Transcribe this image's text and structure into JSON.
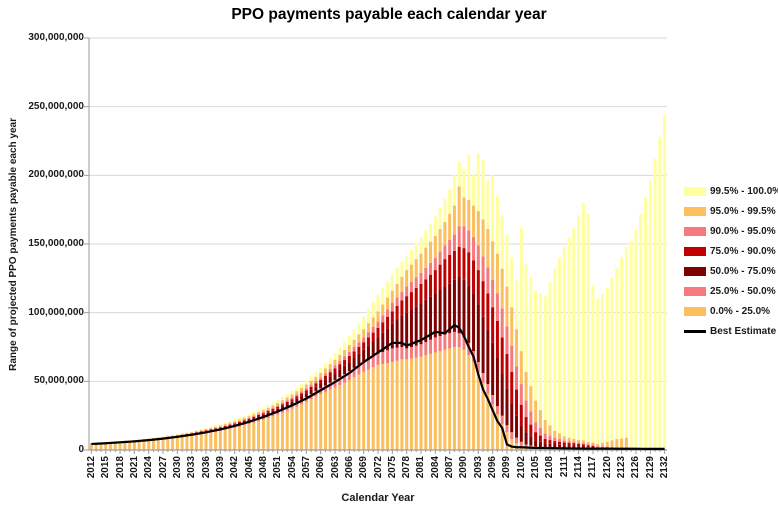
{
  "title": "PPO payments payable each calendar year",
  "x_axis_title": "Calendar Year",
  "y_axis_title": "Range of projected PPO payments payable each year",
  "colors": {
    "band_yellow": "#FFFF9E",
    "band_orange": "#FBBF5E",
    "band_pink": "#F5797D",
    "band_red": "#C00000",
    "band_darkred": "#7F0000",
    "best_estimate_line": "#000000",
    "gridline": "#D9D9D9",
    "axis": "#9C9C9C",
    "text": "#1a1a1a"
  },
  "legend": {
    "position": "right",
    "items": [
      {
        "label": "99.5% - 100.0%",
        "color": "#FFFF9E"
      },
      {
        "label": "95.0% - 99.5%",
        "color": "#FBBF5E"
      },
      {
        "label": "90.0% - 95.0%",
        "color": "#F5797D"
      },
      {
        "label": "75.0% - 90.0%",
        "color": "#C00000"
      },
      {
        "label": "50.0% - 75.0%",
        "color": "#7F0000"
      },
      {
        "label": "25.0% - 50.0%",
        "color": "#F5797D"
      },
      {
        "label": "0.0% - 25.0%",
        "color": "#FBBF5E"
      },
      {
        "label": "Best Estimate",
        "color": "#000000",
        "type": "line"
      }
    ]
  },
  "chart_data": {
    "type": "bar",
    "subtype": "stacked-percentile-fan-with-line",
    "title": "PPO payments payable each calendar year",
    "xlabel": "Calendar Year",
    "ylabel": "Range of projected PPO payments payable each year",
    "grid": "horizontal",
    "legend_position": "right",
    "x_year_range": [
      2012,
      2132
    ],
    "xtick_years": [
      2012,
      2015,
      2018,
      2021,
      2024,
      2027,
      2030,
      2033,
      2036,
      2039,
      2042,
      2045,
      2048,
      2051,
      2054,
      2057,
      2060,
      2063,
      2066,
      2069,
      2072,
      2075,
      2078,
      2081,
      2084,
      2087,
      2090,
      2093,
      2096,
      2099,
      2102,
      2105,
      2108,
      2111,
      2114,
      2117,
      2120,
      2123,
      2126,
      2129,
      2132
    ],
    "ylim_millions": [
      0,
      300
    ],
    "ytick_values_millions": [
      0,
      50,
      100,
      150,
      200,
      250,
      300
    ],
    "ytick_labels": [
      "0",
      "50,000,000",
      "100,000,000",
      "150,000,000",
      "200,000,000",
      "250,000,000",
      "300,000,000"
    ],
    "value_unit": "millions (axis shown as absolute amounts)",
    "note": "Values read from pixels at sample_years; intermediate years are linear between samples. Bands are stacked from 0 using cumulative percentile tops.",
    "sample_years": [
      2012,
      2015,
      2018,
      2021,
      2024,
      2027,
      2030,
      2033,
      2036,
      2039,
      2042,
      2045,
      2048,
      2051,
      2054,
      2057,
      2060,
      2063,
      2066,
      2069,
      2072,
      2075,
      2077,
      2078,
      2081,
      2084,
      2086,
      2087,
      2088,
      2089,
      2090,
      2091,
      2092,
      2093,
      2094,
      2095,
      2096,
      2097,
      2098,
      2099,
      2100,
      2101,
      2102,
      2103,
      2105,
      2107,
      2109,
      2111,
      2113,
      2115,
      2116,
      2117,
      2118,
      2120,
      2122,
      2124,
      2125,
      2126,
      2129,
      2132
    ],
    "series": [
      {
        "name": "0.0% - 25.0%",
        "percentile_top": 25,
        "color": "#FBBF5E",
        "cumulative_top_millions": [
          4.2,
          4.7,
          5.3,
          6.0,
          6.8,
          7.8,
          9.0,
          10.4,
          12.0,
          13.9,
          16.2,
          18.9,
          22.0,
          25.7,
          30.0,
          35.0,
          40.8,
          45.5,
          51.0,
          57.0,
          62.0,
          64.0,
          66.0,
          66.0,
          68.0,
          71.0,
          73.0,
          74.0,
          75.0,
          75.0,
          73.0,
          69.0,
          64.0,
          57.0,
          49.0,
          41.0,
          33.0,
          26.0,
          19.0,
          13.0,
          8.0,
          5.0,
          3.0,
          2.0,
          1.0,
          0.8,
          0.6,
          0.5,
          0.4,
          0.3,
          0.3,
          0.3,
          0.2,
          0.2,
          0.2,
          0.1,
          0.1,
          0.1,
          0.1,
          0.1
        ]
      },
      {
        "name": "25.0% - 50.0%",
        "percentile_top": 50,
        "color": "#F5797D",
        "cumulative_top_millions": [
          4.4,
          4.9,
          5.6,
          6.3,
          7.2,
          8.3,
          9.6,
          11.1,
          12.9,
          15.0,
          17.5,
          20.5,
          24.0,
          28.1,
          32.9,
          38.5,
          45.0,
          51.0,
          57.5,
          64.5,
          70.0,
          74.0,
          75.0,
          74.0,
          77.0,
          82.0,
          84.0,
          85.0,
          86.0,
          85.0,
          82.0,
          78.0,
          72.0,
          64.0,
          56.0,
          48.0,
          40.0,
          32.0,
          25.0,
          18.0,
          13.0,
          9.0,
          6.0,
          4.0,
          2.5,
          1.8,
          1.4,
          1.2,
          1.0,
          0.8,
          0.7,
          0.6,
          0.5,
          0.4,
          0.3,
          0.2,
          0.2,
          0.2,
          0.1,
          0.1
        ]
      },
      {
        "name": "50.0% - 75.0%",
        "percentile_top": 75,
        "color": "#7F0000",
        "cumulative_top_millions": [
          4.5,
          5.1,
          5.8,
          6.6,
          7.5,
          8.7,
          10.1,
          11.7,
          13.6,
          15.9,
          18.6,
          21.8,
          25.6,
          30.0,
          35.2,
          41.3,
          48.4,
          56.0,
          64.0,
          73.0,
          82.0,
          92.0,
          98.0,
          100.0,
          107.0,
          114.0,
          119.0,
          121.0,
          124.0,
          126.0,
          124.0,
          120.0,
          114.0,
          106.0,
          97.0,
          88.0,
          78.0,
          67.0,
          56.0,
          45.0,
          34.0,
          25.0,
          18.0,
          13.0,
          7.0,
          5.0,
          4.0,
          3.5,
          3.0,
          2.5,
          2.0,
          1.5,
          1.0,
          0.8,
          0.6,
          0.4,
          0.3,
          0.3,
          0.2,
          0.2
        ]
      },
      {
        "name": "75.0% - 90.0%",
        "percentile_top": 90,
        "color": "#C00000",
        "cumulative_top_millions": [
          4.6,
          5.2,
          5.9,
          6.8,
          7.8,
          9.0,
          10.5,
          12.2,
          14.2,
          16.6,
          19.4,
          22.8,
          26.8,
          31.5,
          37.0,
          43.5,
          51.1,
          59.5,
          68.5,
          78.5,
          89.0,
          101.0,
          109.0,
          112.0,
          121.0,
          131.0,
          139.0,
          142.0,
          145.0,
          148.0,
          147.0,
          144.0,
          138.0,
          131.0,
          123.0,
          114.0,
          104.0,
          94.0,
          82.0,
          70.0,
          57.0,
          44.0,
          33.0,
          24.0,
          13.0,
          8.0,
          6.5,
          5.5,
          5.0,
          4.0,
          3.5,
          3.0,
          2.0,
          1.5,
          1.0,
          0.8,
          0.5,
          0.5,
          0.3,
          0.3
        ]
      },
      {
        "name": "90.0% - 95.0%",
        "percentile_top": 95,
        "color": "#F5797D",
        "cumulative_top_millions": [
          4.7,
          5.3,
          6.0,
          6.9,
          7.9,
          9.2,
          10.7,
          12.5,
          14.6,
          17.0,
          20.0,
          23.5,
          27.6,
          32.5,
          38.2,
          45.0,
          52.9,
          61.8,
          71.5,
          82.0,
          93.5,
          107.0,
          115.0,
          119.0,
          129.0,
          140.0,
          149.0,
          153.0,
          157.0,
          163.0,
          163.0,
          160.0,
          155.0,
          149.0,
          141.0,
          133.0,
          124.0,
          114.0,
          103.0,
          90.0,
          76.0,
          61.0,
          48.0,
          36.0,
          20.0,
          12.0,
          9.0,
          7.0,
          6.0,
          5.0,
          4.5,
          4.0,
          3.0,
          2.5,
          2.0,
          1.5,
          0.8,
          0.7,
          0.5,
          0.4
        ]
      },
      {
        "name": "95.0% - 99.5%",
        "percentile_top": 99.5,
        "color": "#FBBF5E",
        "cumulative_top_millions": [
          4.8,
          5.5,
          6.2,
          7.2,
          8.3,
          9.6,
          11.2,
          13.1,
          15.3,
          17.9,
          21.0,
          24.7,
          29.1,
          34.3,
          40.4,
          47.7,
          56.1,
          65.8,
          76.5,
          88.0,
          101.0,
          116.0,
          126.0,
          131.0,
          143.0,
          156.0,
          166.0,
          172.0,
          178.0,
          192.0,
          184.0,
          182.0,
          178.0,
          174.0,
          168.0,
          161.0,
          152.0,
          143.0,
          132.0,
          119.0,
          104.0,
          88.0,
          72.0,
          57.0,
          36.0,
          22.0,
          14.0,
          10.0,
          8.0,
          7.0,
          6.0,
          5.5,
          4.5,
          6.0,
          8.0,
          9.0,
          1.5,
          1.2,
          1.0,
          0.8
        ]
      },
      {
        "name": "99.5% - 100.0%",
        "percentile_top": 100,
        "color": "#FFFF9E",
        "cumulative_top_millions": [
          5.0,
          5.7,
          6.5,
          7.5,
          8.7,
          10.1,
          11.8,
          13.8,
          16.2,
          19.0,
          22.3,
          26.2,
          30.9,
          36.4,
          43.0,
          50.7,
          59.8,
          70.5,
          83.0,
          97.0,
          113.0,
          128.0,
          137.0,
          141.0,
          155.0,
          170.0,
          183.0,
          190.0,
          200.0,
          210.0,
          205.0,
          215.0,
          200.0,
          216.0,
          211.0,
          196.0,
          200.0,
          185.0,
          171.0,
          157.0,
          140.0,
          124.0,
          162.0,
          135.0,
          116.0,
          112.0,
          132.0,
          148.0,
          162.0,
          180.0,
          172.0,
          120.0,
          110.0,
          118.0,
          133.0,
          148.0,
          152.0,
          160.0,
          196.0,
          244.0
        ]
      }
    ],
    "best_estimate": {
      "name": "Best Estimate",
      "color": "#000000",
      "values_millions": [
        4.4,
        4.9,
        5.6,
        6.3,
        7.2,
        8.3,
        9.6,
        11.1,
        12.9,
        15.0,
        17.5,
        20.5,
        24.0,
        28.0,
        32.5,
        37.5,
        43.5,
        49.5,
        56.0,
        64.0,
        71.0,
        78.0,
        78.0,
        76.0,
        80.0,
        86.0,
        85.0,
        88.0,
        91.0,
        89.0,
        83.0,
        75.0,
        68.0,
        55.0,
        44.0,
        37.0,
        29.0,
        21.0,
        16.0,
        4.0,
        2.5,
        2.0,
        2.0,
        1.8,
        1.5,
        1.4,
        1.3,
        1.2,
        1.1,
        1.0,
        1.0,
        1.0,
        1.0,
        1.0,
        0.9,
        0.9,
        0.9,
        0.9,
        0.8,
        0.8
      ]
    }
  }
}
